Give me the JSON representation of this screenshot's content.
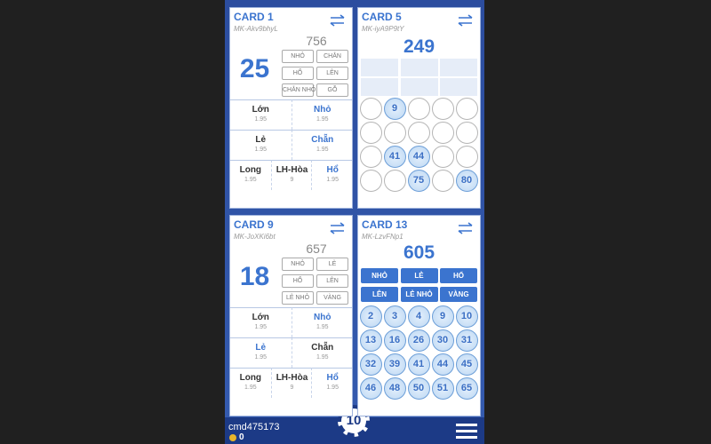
{
  "user": {
    "name": "cmd475173",
    "coins": 0
  },
  "chip": 10,
  "cards": [
    {
      "type": "detail",
      "title": "CARD 1",
      "code": "MK-Akv9bhyL",
      "total": 756,
      "number": 25,
      "tags": [
        "NHỎ",
        "CHẴN",
        "HỔ",
        "LÊN",
        "CHẴN NHỎ",
        "GỖ"
      ],
      "bets": [
        [
          {
            "label": "Lớn",
            "odds": 1.95,
            "active": false
          },
          {
            "label": "Nhỏ",
            "odds": 1.95,
            "active": true
          }
        ],
        [
          {
            "label": "Lẻ",
            "odds": 1.95,
            "active": false
          },
          {
            "label": "Chẵn",
            "odds": 1.95,
            "active": true
          }
        ],
        [
          {
            "label": "Long",
            "odds": 1.95,
            "active": false
          },
          {
            "label": "LH-Hòa",
            "odds": 9,
            "active": false
          },
          {
            "label": "Hổ",
            "odds": 1.95,
            "active": true
          }
        ]
      ]
    },
    {
      "type": "grid",
      "title": "CARD 5",
      "code": "MK-iyA9P9tY",
      "total": 249,
      "balls": [
        null,
        9,
        null,
        null,
        null,
        null,
        null,
        null,
        null,
        null,
        null,
        41,
        44,
        null,
        null,
        null,
        null,
        75,
        null,
        80
      ]
    },
    {
      "type": "detail",
      "title": "CARD 9",
      "code": "MK-JoXKi6bt",
      "total": 657,
      "number": 18,
      "tags": [
        "NHỎ",
        "LẺ",
        "HỔ",
        "LÊN",
        "LẺ NHỎ",
        "VÀNG"
      ],
      "bets": [
        [
          {
            "label": "Lớn",
            "odds": 1.95,
            "active": false
          },
          {
            "label": "Nhỏ",
            "odds": 1.95,
            "active": true
          }
        ],
        [
          {
            "label": "Lẻ",
            "odds": 1.95,
            "active": true
          },
          {
            "label": "Chẵn",
            "odds": 1.95,
            "active": false
          }
        ],
        [
          {
            "label": "Long",
            "odds": 1.95,
            "active": false
          },
          {
            "label": "LH-Hòa",
            "odds": 9,
            "active": false
          },
          {
            "label": "Hổ",
            "odds": 1.95,
            "active": true
          }
        ]
      ]
    },
    {
      "type": "balls",
      "title": "CARD 13",
      "code": "MK-LzvFNp1",
      "total": 605,
      "tags": [
        "NHỎ",
        "LẺ",
        "HỔ",
        "LÊN",
        "LẺ NHỎ",
        "VÀNG"
      ],
      "balls": [
        2,
        3,
        4,
        9,
        10,
        13,
        16,
        26,
        30,
        31,
        32,
        39,
        41,
        44,
        45,
        46,
        48,
        50,
        51,
        65
      ]
    }
  ]
}
